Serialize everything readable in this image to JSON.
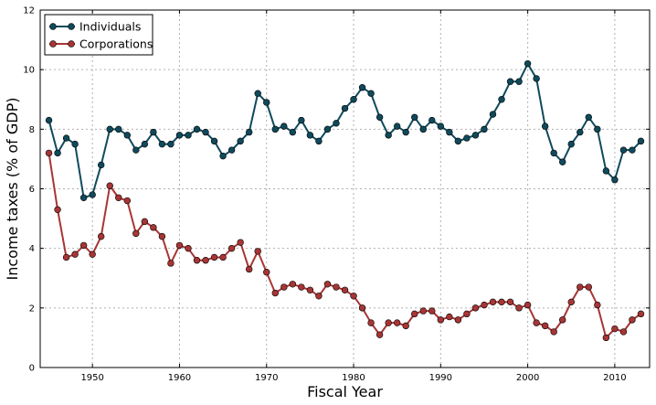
{
  "chart_data": {
    "type": "line",
    "title": "",
    "xlabel": "Fiscal Year",
    "ylabel": "Income taxes (% of GDP)",
    "xlim": [
      1944,
      2014
    ],
    "ylim": [
      0,
      12
    ],
    "x_ticks": [
      1950,
      1960,
      1970,
      1980,
      1990,
      2000,
      2010
    ],
    "y_ticks": [
      0,
      2,
      4,
      6,
      8,
      10,
      12
    ],
    "grid": true,
    "legend_position": "top-left",
    "x": [
      1945,
      1946,
      1947,
      1948,
      1949,
      1950,
      1951,
      1952,
      1953,
      1954,
      1955,
      1956,
      1957,
      1958,
      1959,
      1960,
      1961,
      1962,
      1963,
      1964,
      1965,
      1966,
      1967,
      1968,
      1969,
      1970,
      1971,
      1972,
      1973,
      1974,
      1975,
      1976,
      1977,
      1978,
      1979,
      1980,
      1981,
      1982,
      1983,
      1984,
      1985,
      1986,
      1987,
      1988,
      1989,
      1990,
      1991,
      1992,
      1993,
      1994,
      1995,
      1996,
      1997,
      1998,
      1999,
      2000,
      2001,
      2002,
      2003,
      2004,
      2005,
      2006,
      2007,
      2008,
      2009,
      2010,
      2011,
      2012,
      2013
    ],
    "series": [
      {
        "name": "Individuals",
        "color": "#0f4a5c",
        "values": [
          8.3,
          7.2,
          7.7,
          7.5,
          5.7,
          5.8,
          6.8,
          8.0,
          8.0,
          7.8,
          7.3,
          7.5,
          7.9,
          7.5,
          7.5,
          7.8,
          7.8,
          8.0,
          7.9,
          7.6,
          7.1,
          7.3,
          7.6,
          7.9,
          9.2,
          8.9,
          8.0,
          8.1,
          7.9,
          8.3,
          7.8,
          7.6,
          8.0,
          8.2,
          8.7,
          9.0,
          9.4,
          9.2,
          8.4,
          7.8,
          8.1,
          7.9,
          8.4,
          8.0,
          8.3,
          8.1,
          7.9,
          7.6,
          7.7,
          7.8,
          8.0,
          8.5,
          9.0,
          9.6,
          9.6,
          10.2,
          9.7,
          8.1,
          7.2,
          6.9,
          7.5,
          7.9,
          8.4,
          8.0,
          6.6,
          6.3,
          7.3,
          7.3,
          7.6
        ]
      },
      {
        "name": "Corporations",
        "color": "#a83535",
        "values": [
          7.2,
          5.3,
          3.7,
          3.8,
          4.1,
          3.8,
          4.4,
          6.1,
          5.7,
          5.6,
          4.5,
          4.9,
          4.7,
          4.4,
          3.5,
          4.1,
          4.0,
          3.6,
          3.6,
          3.7,
          3.7,
          4.0,
          4.2,
          3.3,
          3.9,
          3.2,
          2.5,
          2.7,
          2.8,
          2.7,
          2.6,
          2.4,
          2.8,
          2.7,
          2.6,
          2.4,
          2.0,
          1.5,
          1.1,
          1.5,
          1.5,
          1.4,
          1.8,
          1.9,
          1.9,
          1.6,
          1.7,
          1.6,
          1.8,
          2.0,
          2.1,
          2.2,
          2.2,
          2.2,
          2.0,
          2.1,
          1.5,
          1.4,
          1.2,
          1.6,
          2.2,
          2.7,
          2.7,
          2.1,
          1.0,
          1.3,
          1.2,
          1.6,
          1.8
        ]
      }
    ]
  }
}
